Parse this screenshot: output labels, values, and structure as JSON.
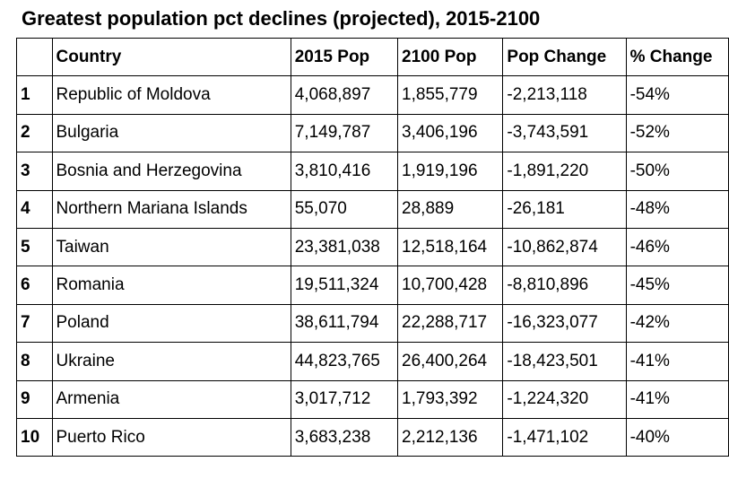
{
  "chart_data": {
    "type": "table",
    "title": "Greatest population pct declines (projected), 2015-2100",
    "columns": [
      "",
      "Country",
      "2015 Pop",
      "2100 Pop",
      "Pop Change",
      "% Change"
    ],
    "rows": [
      [
        "1",
        "Republic of Moldova",
        "4,068,897",
        "1,855,779",
        "-2,213,118",
        "-54%"
      ],
      [
        "2",
        "Bulgaria",
        "7,149,787",
        "3,406,196",
        "-3,743,591",
        "-52%"
      ],
      [
        "3",
        "Bosnia and Herzegovina",
        "3,810,416",
        "1,919,196",
        "-1,891,220",
        "-50%"
      ],
      [
        "4",
        "Northern Mariana Islands",
        "55,070",
        "28,889",
        "-26,181",
        "-48%"
      ],
      [
        "5",
        "Taiwan",
        "23,381,038",
        "12,518,164",
        "-10,862,874",
        "-46%"
      ],
      [
        "6",
        "Romania",
        "19,511,324",
        "10,700,428",
        "-8,810,896",
        "-45%"
      ],
      [
        "7",
        "Poland",
        "38,611,794",
        "22,288,717",
        "-16,323,077",
        "-42%"
      ],
      [
        "8",
        "Ukraine",
        "44,823,765",
        "26,400,264",
        "-18,423,501",
        "-41%"
      ],
      [
        "9",
        "Armenia",
        "3,017,712",
        "1,793,392",
        "-1,224,320",
        "-41%"
      ],
      [
        "10",
        "Puerto Rico",
        "3,683,238",
        "2,212,136",
        "-1,471,102",
        "-40%"
      ]
    ]
  }
}
